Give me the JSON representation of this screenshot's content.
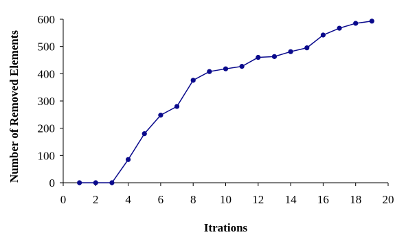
{
  "chart_data": {
    "type": "line",
    "xlabel": "Itrations",
    "ylabel": "Number of Removed Elements",
    "xlim": [
      0,
      20
    ],
    "ylim": [
      0,
      600
    ],
    "x_ticks": [
      0,
      2,
      4,
      6,
      8,
      10,
      12,
      14,
      16,
      18,
      20
    ],
    "y_ticks": [
      0,
      100,
      200,
      300,
      400,
      500,
      600
    ],
    "grid": false,
    "legend": "none",
    "series": [
      {
        "color": "#0a0a8c",
        "x": [
          1,
          2,
          3,
          4,
          5,
          6,
          7,
          8,
          9,
          10,
          11,
          12,
          13,
          14,
          15,
          16,
          17,
          18,
          19
        ],
        "y": [
          0,
          0,
          0,
          85,
          180,
          248,
          280,
          376,
          408,
          418,
          427,
          460,
          463,
          481,
          495,
          542,
          567,
          585,
          593
        ]
      }
    ]
  }
}
